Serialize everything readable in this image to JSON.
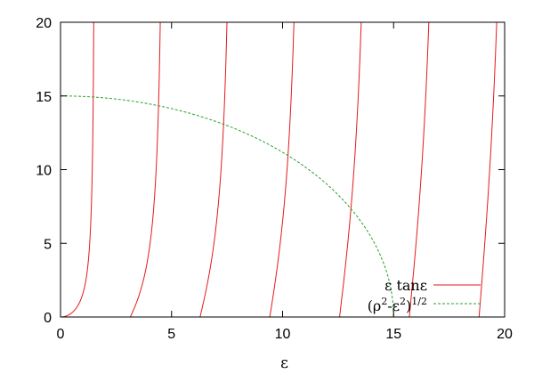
{
  "chart_data": {
    "type": "line",
    "title": "",
    "xlabel": "ε",
    "ylabel": "",
    "xlim": [
      0,
      20
    ],
    "ylim": [
      0,
      20
    ],
    "xticks": [
      "0",
      "5",
      "10",
      "15",
      "20"
    ],
    "yticks": [
      "0",
      "5",
      "10",
      "15",
      "20"
    ],
    "grid": false,
    "legend_position": "bottom-right",
    "rho": 15,
    "series": [
      {
        "name": "ε tanε",
        "color": "#e41a1c",
        "function": "x*tan(x)",
        "branches": [
          [
            0,
            1.5708
          ],
          [
            3.1416,
            4.7124
          ],
          [
            6.2832,
            7.854
          ],
          [
            9.4248,
            10.9956
          ],
          [
            12.5664,
            14.1372
          ],
          [
            15.708,
            17.2788
          ],
          [
            18.8496,
            20.4204
          ]
        ]
      },
      {
        "name": "(ρ²-ε²)^1/2",
        "legend_parts": [
          "(ρ",
          "2",
          "-ε",
          "2",
          ")",
          "1/2"
        ],
        "color": "#2ca02c",
        "function": "sqrt(rho^2 - x^2)",
        "domain": [
          0,
          15
        ]
      }
    ]
  }
}
